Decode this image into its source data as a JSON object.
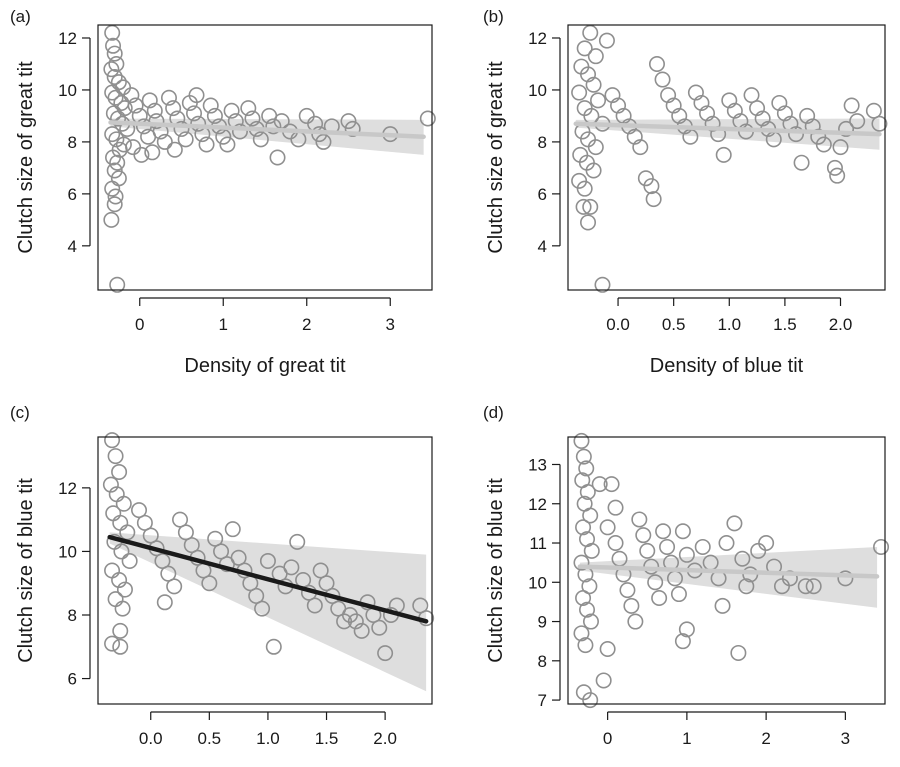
{
  "chart_data": [
    {
      "type": "scatter",
      "panel_label": "(a)",
      "xlabel": "Density of great tit",
      "ylabel": "Clutch size of great tit",
      "xlim": [
        -0.5,
        3.5
      ],
      "ylim": [
        2.3,
        12.5
      ],
      "xticks": [
        0,
        1,
        2,
        3
      ],
      "xtick_labels": [
        "0",
        "1",
        "2",
        "3"
      ],
      "yticks": [
        4,
        6,
        8,
        10,
        12
      ],
      "ytick_labels": [
        "4",
        "6",
        "8",
        "10",
        "12"
      ],
      "trend": {
        "x": [
          -0.35,
          3.4
        ],
        "y": [
          8.75,
          8.2
        ],
        "color": "#c8c8c8"
      },
      "ci_band": {
        "x": [
          -0.35,
          3.4
        ],
        "upper": [
          8.9,
          8.85
        ],
        "lower": [
          8.6,
          7.5
        ]
      },
      "points": [
        [
          -0.33,
          12.2
        ],
        [
          -0.32,
          11.7
        ],
        [
          -0.3,
          11.4
        ],
        [
          -0.28,
          11.0
        ],
        [
          -0.34,
          10.8
        ],
        [
          -0.3,
          10.5
        ],
        [
          -0.25,
          10.3
        ],
        [
          -0.2,
          10.1
        ],
        [
          -0.33,
          9.9
        ],
        [
          -0.29,
          9.7
        ],
        [
          -0.22,
          9.5
        ],
        [
          -0.18,
          9.3
        ],
        [
          -0.31,
          9.1
        ],
        [
          -0.26,
          8.9
        ],
        [
          -0.21,
          8.7
        ],
        [
          -0.15,
          8.5
        ],
        [
          -0.33,
          8.3
        ],
        [
          -0.28,
          8.1
        ],
        [
          -0.19,
          7.9
        ],
        [
          -0.24,
          7.7
        ],
        [
          -0.32,
          7.4
        ],
        [
          -0.27,
          7.2
        ],
        [
          -0.3,
          6.9
        ],
        [
          -0.25,
          6.6
        ],
        [
          -0.33,
          6.2
        ],
        [
          -0.29,
          5.9
        ],
        [
          -0.3,
          5.6
        ],
        [
          -0.34,
          5.0
        ],
        [
          -0.27,
          2.5
        ],
        [
          -0.1,
          9.8
        ],
        [
          -0.05,
          9.4
        ],
        [
          0.0,
          9.0
        ],
        [
          0.05,
          8.6
        ],
        [
          0.1,
          8.2
        ],
        [
          -0.08,
          7.8
        ],
        [
          0.02,
          7.5
        ],
        [
          0.12,
          9.6
        ],
        [
          0.18,
          9.2
        ],
        [
          0.2,
          8.8
        ],
        [
          0.25,
          8.4
        ],
        [
          0.3,
          8.0
        ],
        [
          0.15,
          7.6
        ],
        [
          0.35,
          9.7
        ],
        [
          0.4,
          9.3
        ],
        [
          0.45,
          8.9
        ],
        [
          0.5,
          8.5
        ],
        [
          0.55,
          8.1
        ],
        [
          0.42,
          7.7
        ],
        [
          0.6,
          9.5
        ],
        [
          0.65,
          9.1
        ],
        [
          0.7,
          8.7
        ],
        [
          0.75,
          8.3
        ],
        [
          0.8,
          7.9
        ],
        [
          0.68,
          9.8
        ],
        [
          0.85,
          9.4
        ],
        [
          0.9,
          9.0
        ],
        [
          0.95,
          8.6
        ],
        [
          1.0,
          8.2
        ],
        [
          1.05,
          7.9
        ],
        [
          1.1,
          9.2
        ],
        [
          1.15,
          8.8
        ],
        [
          1.2,
          8.4
        ],
        [
          1.3,
          9.3
        ],
        [
          1.35,
          8.9
        ],
        [
          1.4,
          8.5
        ],
        [
          1.45,
          8.1
        ],
        [
          1.55,
          9.0
        ],
        [
          1.6,
          8.6
        ],
        [
          1.65,
          7.4
        ],
        [
          1.7,
          8.8
        ],
        [
          1.8,
          8.4
        ],
        [
          1.9,
          8.1
        ],
        [
          2.0,
          9.0
        ],
        [
          2.1,
          8.7
        ],
        [
          2.15,
          8.3
        ],
        [
          2.2,
          8.0
        ],
        [
          2.3,
          8.6
        ],
        [
          2.5,
          8.8
        ],
        [
          2.55,
          8.5
        ],
        [
          3.0,
          8.3
        ],
        [
          3.45,
          8.9
        ]
      ]
    },
    {
      "type": "scatter",
      "panel_label": "(b)",
      "xlabel": "Density of blue tit",
      "ylabel": "Clutch size of great tit",
      "xlim": [
        -0.45,
        2.4
      ],
      "ylim": [
        2.3,
        12.5
      ],
      "xticks": [
        0.0,
        0.5,
        1.0,
        1.5,
        2.0
      ],
      "xtick_labels": [
        "0.0",
        "0.5",
        "1.0",
        "1.5",
        "2.0"
      ],
      "yticks": [
        4,
        6,
        8,
        10,
        12
      ],
      "ytick_labels": [
        "4",
        "6",
        "8",
        "10",
        "12"
      ],
      "trend": {
        "x": [
          -0.38,
          2.35
        ],
        "y": [
          8.7,
          8.3
        ],
        "color": "#c8c8c8"
      },
      "ci_band": {
        "x": [
          -0.38,
          2.35
        ],
        "upper": [
          8.85,
          8.9
        ],
        "lower": [
          8.55,
          7.7
        ]
      },
      "points": [
        [
          -0.25,
          12.2
        ],
        [
          -0.3,
          11.6
        ],
        [
          -0.2,
          11.3
        ],
        [
          -0.33,
          10.9
        ],
        [
          -0.27,
          10.6
        ],
        [
          -0.22,
          10.2
        ],
        [
          -0.35,
          9.9
        ],
        [
          -0.18,
          9.6
        ],
        [
          -0.3,
          9.3
        ],
        [
          -0.24,
          9.0
        ],
        [
          -0.14,
          8.7
        ],
        [
          -0.32,
          8.4
        ],
        [
          -0.27,
          8.1
        ],
        [
          -0.2,
          7.8
        ],
        [
          -0.34,
          7.5
        ],
        [
          -0.28,
          7.2
        ],
        [
          -0.22,
          6.9
        ],
        [
          -0.35,
          6.5
        ],
        [
          -0.3,
          6.2
        ],
        [
          -0.25,
          5.5
        ],
        [
          -0.31,
          5.5
        ],
        [
          -0.27,
          4.9
        ],
        [
          -0.14,
          2.5
        ],
        [
          -0.1,
          11.9
        ],
        [
          -0.05,
          9.8
        ],
        [
          0.0,
          9.4
        ],
        [
          0.05,
          9.0
        ],
        [
          0.1,
          8.6
        ],
        [
          0.15,
          8.2
        ],
        [
          0.2,
          7.8
        ],
        [
          0.25,
          6.6
        ],
        [
          0.3,
          6.3
        ],
        [
          0.32,
          5.8
        ],
        [
          0.35,
          11.0
        ],
        [
          0.4,
          10.4
        ],
        [
          0.45,
          9.8
        ],
        [
          0.5,
          9.4
        ],
        [
          0.55,
          9.0
        ],
        [
          0.6,
          8.6
        ],
        [
          0.65,
          8.2
        ],
        [
          0.7,
          9.9
        ],
        [
          0.75,
          9.5
        ],
        [
          0.8,
          9.1
        ],
        [
          0.85,
          8.7
        ],
        [
          0.9,
          8.3
        ],
        [
          0.95,
          7.5
        ],
        [
          1.0,
          9.6
        ],
        [
          1.05,
          9.2
        ],
        [
          1.1,
          8.8
        ],
        [
          1.15,
          8.4
        ],
        [
          1.2,
          9.8
        ],
        [
          1.25,
          9.3
        ],
        [
          1.3,
          8.9
        ],
        [
          1.35,
          8.5
        ],
        [
          1.4,
          8.1
        ],
        [
          1.45,
          9.5
        ],
        [
          1.5,
          9.1
        ],
        [
          1.55,
          8.7
        ],
        [
          1.6,
          8.3
        ],
        [
          1.65,
          7.2
        ],
        [
          1.7,
          9.0
        ],
        [
          1.75,
          8.6
        ],
        [
          1.8,
          8.2
        ],
        [
          1.85,
          7.9
        ],
        [
          1.95,
          7.0
        ],
        [
          1.97,
          6.7
        ],
        [
          2.0,
          7.8
        ],
        [
          2.05,
          8.5
        ],
        [
          2.1,
          9.4
        ],
        [
          2.15,
          8.8
        ],
        [
          2.3,
          9.2
        ],
        [
          2.35,
          8.7
        ]
      ]
    },
    {
      "type": "scatter",
      "panel_label": "(c)",
      "xlabel": "Density of blue tit",
      "ylabel": "Clutch size of blue tit",
      "xlim": [
        -0.45,
        2.4
      ],
      "ylim": [
        5.2,
        13.6
      ],
      "xticks": [
        0.0,
        0.5,
        1.0,
        1.5,
        2.0
      ],
      "xtick_labels": [
        "0.0",
        "0.5",
        "1.0",
        "1.5",
        "2.0"
      ],
      "yticks": [
        6,
        8,
        10,
        12
      ],
      "ytick_labels": [
        "6",
        "8",
        "10",
        "12"
      ],
      "trend": {
        "x": [
          -0.35,
          2.35
        ],
        "y": [
          10.45,
          7.8
        ],
        "color": "#1a1a1a"
      },
      "ci_band": {
        "x": [
          -0.35,
          2.35
        ],
        "upper": [
          10.6,
          9.9
        ],
        "lower": [
          10.25,
          5.6
        ]
      },
      "points": [
        [
          -0.33,
          13.5
        ],
        [
          -0.3,
          13.0
        ],
        [
          -0.27,
          12.5
        ],
        [
          -0.34,
          12.1
        ],
        [
          -0.29,
          11.8
        ],
        [
          -0.23,
          11.5
        ],
        [
          -0.32,
          11.2
        ],
        [
          -0.26,
          10.9
        ],
        [
          -0.2,
          10.6
        ],
        [
          -0.31,
          10.3
        ],
        [
          -0.25,
          10.0
        ],
        [
          -0.18,
          9.7
        ],
        [
          -0.33,
          9.4
        ],
        [
          -0.27,
          9.1
        ],
        [
          -0.22,
          8.8
        ],
        [
          -0.3,
          8.5
        ],
        [
          -0.24,
          8.2
        ],
        [
          -0.33,
          7.1
        ],
        [
          -0.26,
          7.0
        ],
        [
          -0.26,
          7.5
        ],
        [
          -0.1,
          11.3
        ],
        [
          -0.05,
          10.9
        ],
        [
          0.0,
          10.5
        ],
        [
          0.05,
          10.1
        ],
        [
          0.1,
          9.7
        ],
        [
          0.15,
          9.3
        ],
        [
          0.2,
          8.9
        ],
        [
          0.12,
          8.4
        ],
        [
          0.25,
          11.0
        ],
        [
          0.3,
          10.6
        ],
        [
          0.35,
          10.2
        ],
        [
          0.4,
          9.8
        ],
        [
          0.45,
          9.4
        ],
        [
          0.5,
          9.0
        ],
        [
          0.55,
          10.4
        ],
        [
          0.6,
          10.0
        ],
        [
          0.65,
          9.6
        ],
        [
          0.7,
          10.7
        ],
        [
          0.75,
          9.8
        ],
        [
          0.8,
          9.4
        ],
        [
          0.85,
          9.0
        ],
        [
          0.9,
          8.6
        ],
        [
          0.95,
          8.2
        ],
        [
          1.0,
          9.7
        ],
        [
          1.05,
          7.0
        ],
        [
          1.1,
          9.3
        ],
        [
          1.15,
          8.9
        ],
        [
          1.2,
          9.5
        ],
        [
          1.25,
          10.3
        ],
        [
          1.3,
          9.1
        ],
        [
          1.35,
          8.7
        ],
        [
          1.4,
          8.3
        ],
        [
          1.45,
          9.4
        ],
        [
          1.5,
          9.0
        ],
        [
          1.55,
          8.6
        ],
        [
          1.6,
          8.2
        ],
        [
          1.65,
          7.8
        ],
        [
          1.7,
          8.0
        ],
        [
          1.75,
          7.8
        ],
        [
          1.8,
          7.5
        ],
        [
          1.85,
          8.4
        ],
        [
          1.9,
          8.0
        ],
        [
          1.95,
          7.6
        ],
        [
          2.0,
          6.8
        ],
        [
          2.05,
          8.0
        ],
        [
          2.1,
          8.3
        ],
        [
          2.3,
          8.3
        ],
        [
          2.35,
          7.9
        ]
      ]
    },
    {
      "type": "scatter",
      "panel_label": "(d)",
      "xlabel": "Density of great tit",
      "ylabel": "Clutch size of blue tit",
      "xlim": [
        -0.5,
        3.5
      ],
      "ylim": [
        6.9,
        13.7
      ],
      "xticks": [
        0,
        1,
        2,
        3
      ],
      "xtick_labels": [
        "0",
        "1",
        "2",
        "3"
      ],
      "yticks": [
        7,
        8,
        9,
        10,
        11,
        12,
        13
      ],
      "ytick_labels": [
        "7",
        "8",
        "9",
        "10",
        "11",
        "12",
        "13"
      ],
      "trend": {
        "x": [
          -0.35,
          3.4
        ],
        "y": [
          10.4,
          10.15
        ],
        "color": "#c8c8c8"
      },
      "ci_band": {
        "x": [
          -0.35,
          3.4
        ],
        "upper": [
          10.5,
          10.9
        ],
        "lower": [
          10.3,
          9.35
        ]
      },
      "points": [
        [
          -0.33,
          13.6
        ],
        [
          -0.3,
          13.2
        ],
        [
          -0.27,
          12.9
        ],
        [
          -0.32,
          12.6
        ],
        [
          -0.25,
          12.3
        ],
        [
          -0.29,
          12.0
        ],
        [
          -0.22,
          11.7
        ],
        [
          -0.31,
          11.4
        ],
        [
          -0.26,
          11.1
        ],
        [
          -0.2,
          10.8
        ],
        [
          -0.33,
          10.5
        ],
        [
          -0.28,
          10.2
        ],
        [
          -0.23,
          9.9
        ],
        [
          -0.31,
          9.6
        ],
        [
          -0.26,
          9.3
        ],
        [
          -0.21,
          9.0
        ],
        [
          -0.33,
          8.7
        ],
        [
          -0.28,
          8.4
        ],
        [
          -0.3,
          7.2
        ],
        [
          -0.22,
          7.0
        ],
        [
          -0.05,
          7.5
        ],
        [
          0.0,
          8.3
        ],
        [
          -0.1,
          12.5
        ],
        [
          0.05,
          12.5
        ],
        [
          0.1,
          11.9
        ],
        [
          0.0,
          11.4
        ],
        [
          0.1,
          11.0
        ],
        [
          0.15,
          10.6
        ],
        [
          0.2,
          10.2
        ],
        [
          0.25,
          9.8
        ],
        [
          0.3,
          9.4
        ],
        [
          0.35,
          9.0
        ],
        [
          0.4,
          11.6
        ],
        [
          0.45,
          11.2
        ],
        [
          0.5,
          10.8
        ],
        [
          0.55,
          10.4
        ],
        [
          0.6,
          10.0
        ],
        [
          0.65,
          9.6
        ],
        [
          0.7,
          11.3
        ],
        [
          0.75,
          10.9
        ],
        [
          0.8,
          10.5
        ],
        [
          0.85,
          10.1
        ],
        [
          0.9,
          9.7
        ],
        [
          0.95,
          11.3
        ],
        [
          1.0,
          10.7
        ],
        [
          1.0,
          8.8
        ],
        [
          0.95,
          8.5
        ],
        [
          1.1,
          10.3
        ],
        [
          1.2,
          10.9
        ],
        [
          1.3,
          10.5
        ],
        [
          1.4,
          10.1
        ],
        [
          1.45,
          9.4
        ],
        [
          1.5,
          11.0
        ],
        [
          1.6,
          11.5
        ],
        [
          1.65,
          8.2
        ],
        [
          1.7,
          10.6
        ],
        [
          1.75,
          9.9
        ],
        [
          1.8,
          10.2
        ],
        [
          1.9,
          10.8
        ],
        [
          2.0,
          11.0
        ],
        [
          2.1,
          10.4
        ],
        [
          2.2,
          9.9
        ],
        [
          2.3,
          10.1
        ],
        [
          2.5,
          9.9
        ],
        [
          2.6,
          9.9
        ],
        [
          3.0,
          10.1
        ],
        [
          3.45,
          10.9
        ]
      ]
    }
  ]
}
